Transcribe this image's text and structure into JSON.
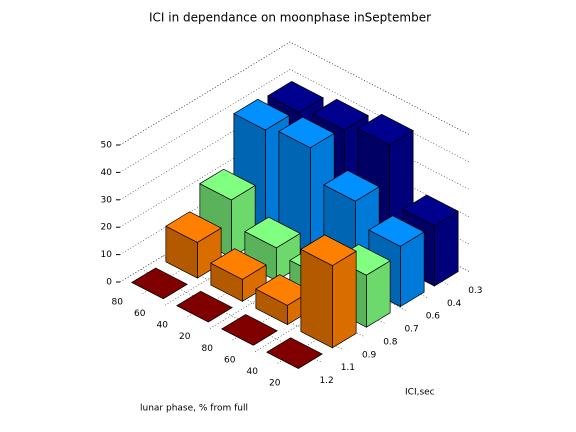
{
  "chart_data": {
    "type": "bar3d",
    "title": "ICI in dependance on moonphase inSeptember",
    "xlabel": "lunar phase, % from full",
    "ylabel": "ICI,sec",
    "x_categories": [
      "80",
      "60",
      "40",
      "20",
      "80",
      "60",
      "40",
      "20"
    ],
    "y_categories": [
      "1.2",
      "1.1",
      "0.9",
      "0.8",
      "0.7",
      "0.6",
      "0.4",
      "0.3"
    ],
    "series": [
      {
        "color": "#800000",
        "values": [
          0,
          0,
          0,
          0
        ]
      },
      {
        "color": "#ff8000",
        "values": [
          13,
          8,
          7,
          30
        ]
      },
      {
        "color": "#80ff80",
        "values": [
          21,
          12,
          10,
          19
        ]
      },
      {
        "color": "#0090ff",
        "values": [
          39,
          41,
          30,
          22
        ]
      },
      {
        "color": "#00008f",
        "values": [
          38,
          40,
          43,
          22
        ]
      }
    ],
    "zlim": [
      0,
      50
    ],
    "zticks": [
      0,
      10,
      20,
      30,
      40,
      50
    ],
    "grid": true
  }
}
